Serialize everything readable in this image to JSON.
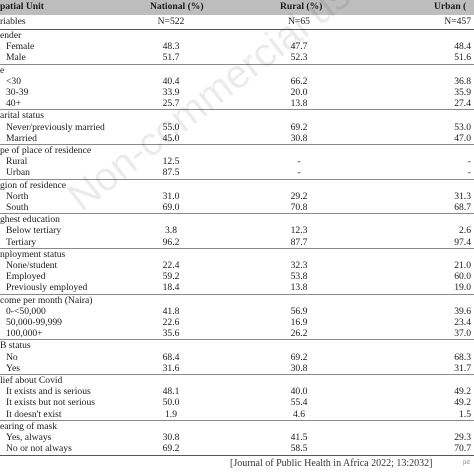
{
  "header": {
    "col0": "patial Unit",
    "col1": "National (%)",
    "col2": "Rural (%)",
    "col3": "Urban ("
  },
  "subheader": {
    "label": "riables",
    "national": "N=522",
    "rural": "N=65",
    "urban": "N=457"
  },
  "rows": [
    {
      "type": "group",
      "label": "ender"
    },
    {
      "type": "item",
      "label": "Female",
      "national": "48.3",
      "rural": "47.7",
      "urban": "48.4"
    },
    {
      "type": "item",
      "label": "Male",
      "national": "51.7",
      "rural": "52.3",
      "urban": "51.6"
    },
    {
      "type": "group",
      "label": "e"
    },
    {
      "type": "item",
      "label": "<30",
      "national": "40.4",
      "rural": "66.2",
      "urban": "36.8"
    },
    {
      "type": "item",
      "label": "30-39",
      "national": "33.9",
      "rural": "20.0",
      "urban": "35.9"
    },
    {
      "type": "item",
      "label": "40+",
      "national": "25.7",
      "rural": "13.8",
      "urban": "27.4"
    },
    {
      "type": "group",
      "label": "arital status"
    },
    {
      "type": "item",
      "label": "Never/previously married",
      "national": "55.0",
      "rural": "69.2",
      "urban": "53.0"
    },
    {
      "type": "item",
      "label": "Married",
      "national": "45.0",
      "rural": "30.8",
      "urban": "47.0"
    },
    {
      "type": "group",
      "label": "pe of place of residence"
    },
    {
      "type": "item",
      "label": "Rural",
      "national": "12.5",
      "rural": "-",
      "urban": "-"
    },
    {
      "type": "item",
      "label": "Urban",
      "national": "87.5",
      "rural": "-",
      "urban": "-"
    },
    {
      "type": "group",
      "label": "gion of residence"
    },
    {
      "type": "item",
      "label": "North",
      "national": "31.0",
      "rural": "29.2",
      "urban": "31.3"
    },
    {
      "type": "item",
      "label": "South",
      "national": "69.0",
      "rural": "70.8",
      "urban": "68.7"
    },
    {
      "type": "group",
      "label": "ghest education"
    },
    {
      "type": "item",
      "label": "Below tertiary",
      "national": "3.8",
      "rural": "12.3",
      "urban": "2.6"
    },
    {
      "type": "item",
      "label": "Tertiary",
      "national": "96.2",
      "rural": "87.7",
      "urban": "97.4"
    },
    {
      "type": "group",
      "label": "nployment status"
    },
    {
      "type": "item",
      "label": "None/student",
      "national": "22.4",
      "rural": "32.3",
      "urban": "21.0"
    },
    {
      "type": "item",
      "label": "Employed",
      "national": "59.2",
      "rural": "53.8",
      "urban": "60.0"
    },
    {
      "type": "item",
      "label": "Previously employed",
      "national": "18.4",
      "rural": "13.8",
      "urban": "19.0"
    },
    {
      "type": "group",
      "label": "come per month (Naira)"
    },
    {
      "type": "item",
      "label": "0-<50,000",
      "national": "41.8",
      "rural": "56.9",
      "urban": "39.6"
    },
    {
      "type": "item",
      "label": "50,000-99,999",
      "national": "22.6",
      "rural": "16.9",
      "urban": "23.4"
    },
    {
      "type": "item",
      "label": "100,000+",
      "national": "35.6",
      "rural": "26.2",
      "urban": "37.0"
    },
    {
      "type": "group",
      "label": "B status"
    },
    {
      "type": "item",
      "label": "No",
      "national": "68.4",
      "rural": "69.2",
      "urban": "68.3"
    },
    {
      "type": "item",
      "label": "Yes",
      "national": "31.6",
      "rural": "30.8",
      "urban": "31.7"
    },
    {
      "type": "group",
      "label": "lief about Covid"
    },
    {
      "type": "item",
      "label": "It exists and is serious",
      "national": "48.1",
      "rural": "40.0",
      "urban": "49.2"
    },
    {
      "type": "item",
      "label": "It exists but not serious",
      "national": "50.0",
      "rural": "55.4",
      "urban": "49.2"
    },
    {
      "type": "item",
      "label": "It doesn't exist",
      "national": "1.9",
      "rural": "4.6",
      "urban": "1.5"
    },
    {
      "type": "group",
      "label": "earing of mask"
    },
    {
      "type": "item",
      "label": "Yes, always",
      "national": "30.8",
      "rural": "41.5",
      "urban": "29.3"
    },
    {
      "type": "item",
      "label": "No or not always",
      "national": "69.2",
      "rural": "58.5",
      "urban": "70.7"
    }
  ],
  "watermark": "Non-commercial us",
  "footer": "[Journal of Public Health in Africa 2022; 13:2032]",
  "corner": "pd"
}
